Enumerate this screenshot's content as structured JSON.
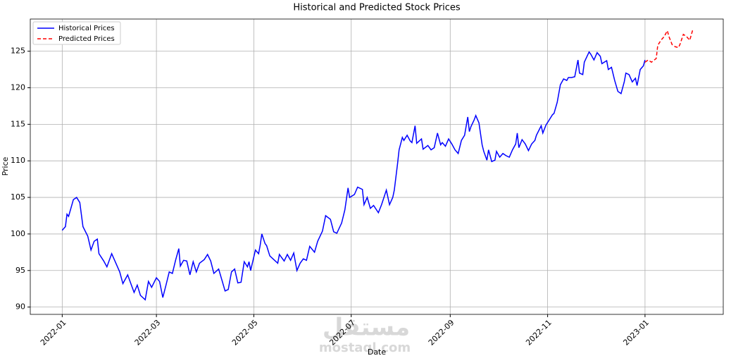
{
  "chart_data": {
    "type": "line",
    "title": "Historical and Predicted Stock Prices",
    "xlabel": "Date",
    "ylabel": "Price",
    "watermark": [
      "مستقل",
      "mostaql.com"
    ],
    "legend": "upper left",
    "grid": true,
    "xlim": [
      -20,
      414
    ],
    "ylim": [
      89.0,
      129.4
    ],
    "xticks": [
      {
        "value": 0,
        "label": "2022-01"
      },
      {
        "value": 59,
        "label": "2022-03"
      },
      {
        "value": 120,
        "label": "2022-05"
      },
      {
        "value": 181,
        "label": "2022-07"
      },
      {
        "value": 243,
        "label": "2022-09"
      },
      {
        "value": 304,
        "label": "2022-11"
      },
      {
        "value": 365,
        "label": "2023-01"
      }
    ],
    "yticks": [
      90,
      95,
      100,
      105,
      110,
      115,
      120,
      125
    ],
    "series": [
      {
        "name": "Historical Prices",
        "color": "#0000ff",
        "dash": false,
        "x": [
          0,
          2,
          3,
          4,
          7,
          9,
          11,
          13,
          16,
          18,
          20,
          22,
          23,
          26,
          28,
          31,
          33,
          36,
          38,
          41,
          43,
          45,
          47,
          49,
          52,
          54,
          56,
          59,
          61,
          63,
          65,
          67,
          69,
          71,
          73,
          74,
          76,
          78,
          80,
          82,
          84,
          86,
          89,
          91,
          93,
          95,
          98,
          100,
          102,
          104,
          106,
          108,
          110,
          112,
          114,
          116,
          117,
          118,
          121,
          123,
          124,
          125,
          127,
          128,
          130,
          132,
          135,
          136,
          139,
          141,
          143,
          145,
          147,
          149,
          151,
          153,
          155,
          158,
          160,
          163,
          165,
          168,
          170,
          172,
          175,
          177,
          179,
          180,
          183,
          185,
          188,
          189,
          191,
          193,
          195,
          198,
          200,
          203,
          205,
          207,
          208,
          210,
          211,
          213,
          214,
          216,
          218,
          219,
          221,
          222,
          225,
          226,
          229,
          231,
          233,
          235,
          237,
          238,
          240,
          242,
          244,
          246,
          248,
          250,
          252,
          254,
          255,
          256,
          258,
          259,
          261,
          263,
          264,
          266,
          267,
          269,
          271,
          272,
          274,
          276,
          278,
          280,
          282,
          284,
          285,
          286,
          288,
          290,
          292,
          294,
          296,
          297,
          300,
          301,
          303,
          305,
          307,
          308,
          310,
          312,
          314,
          316,
          317,
          319,
          321,
          323,
          324,
          326,
          327,
          330,
          331,
          333,
          335,
          337,
          338,
          341,
          342,
          344,
          346,
          348,
          350,
          352,
          353,
          355,
          357,
          359,
          360,
          362,
          364,
          365
        ],
        "values": [
          100.5,
          101,
          102.7,
          102.4,
          104.7,
          105,
          104.3,
          101,
          99.7,
          97.8,
          99,
          99.3,
          97.3,
          96.3,
          95.5,
          97.3,
          96.3,
          94.8,
          93.2,
          94.4,
          93.2,
          92,
          93,
          91.6,
          91,
          93.5,
          92.7,
          94,
          93.5,
          91.3,
          93,
          94.8,
          94.6,
          96.4,
          98,
          95.6,
          96.4,
          96.3,
          94.4,
          96.2,
          94.8,
          96,
          96.5,
          97.2,
          96.3,
          94.6,
          95.2,
          93.7,
          92.2,
          92.4,
          94.8,
          95.2,
          93.3,
          93.4,
          96.2,
          95.5,
          96.2,
          95,
          97.8,
          97.3,
          98.5,
          100,
          98.7,
          98.4,
          97,
          96.6,
          96,
          97.2,
          96.3,
          97.2,
          96.4,
          97.4,
          95,
          96,
          96.6,
          96.4,
          98.3,
          97.5,
          99,
          100.4,
          102.5,
          102,
          100.3,
          100.1,
          101.5,
          103.3,
          106.3,
          105,
          105.4,
          106.4,
          106.1,
          104,
          105,
          103.5,
          103.9,
          102.9,
          104,
          106,
          104,
          105,
          106,
          109.6,
          111.5,
          113.2,
          112.8,
          113.5,
          112.7,
          112.5,
          114.8,
          112.4,
          113,
          111.6,
          112.1,
          111.5,
          111.8,
          113.8,
          112.2,
          112.5,
          112,
          113,
          112.3,
          111.5,
          111,
          112.8,
          113.5,
          116,
          114,
          114.7,
          115.6,
          116.2,
          115.2,
          112.2,
          111.3,
          110.1,
          111.5,
          109.9,
          110.1,
          111.3,
          110.5,
          111,
          110.7,
          110.5,
          111.5,
          112.3,
          113.8,
          111.8,
          112.9,
          112.3,
          111.4,
          112.3,
          112.8,
          113.5,
          114.8,
          113.8,
          114.9,
          115.6,
          116.3,
          116.5,
          118,
          120.4,
          121.2,
          121,
          121.4,
          121.4,
          121.5,
          123.8,
          122,
          121.8,
          123.5,
          124.9,
          124.6,
          123.8,
          124.8,
          124.3,
          123.3,
          123.7,
          122.5,
          122.8,
          121,
          119.5,
          119.2,
          120.8,
          122,
          121.8,
          120.8,
          121.3,
          120.3,
          122.5,
          123,
          123.8
        ]
      },
      {
        "name": "Predicted Prices",
        "color": "#ff0000",
        "dash": true,
        "x": [
          365,
          367,
          369,
          372,
          373,
          375,
          377,
          379,
          380,
          382,
          384,
          386,
          387,
          389,
          391,
          393,
          395
        ],
        "values": [
          123.5,
          123.8,
          123.5,
          124,
          125.8,
          126.5,
          127,
          127.8,
          127,
          125.9,
          125.6,
          125.5,
          126,
          127.3,
          127,
          126.5,
          128
        ]
      }
    ]
  }
}
